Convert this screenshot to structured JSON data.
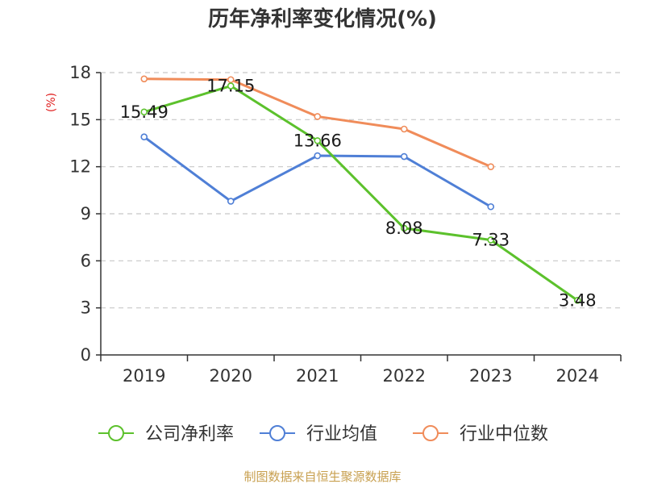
{
  "chart_data": {
    "type": "line",
    "title": "历年净利率变化情况(%)",
    "ylabel": "(%)",
    "categories": [
      "2019",
      "2020",
      "2021",
      "2022",
      "2023",
      "2024"
    ],
    "ylim": [
      0,
      18
    ],
    "yticks": [
      0,
      3,
      6,
      9,
      12,
      15,
      18
    ],
    "grid": true,
    "legend_position": "bottom",
    "series": [
      {
        "name": "公司净利率",
        "color": "#5cc12c",
        "values": [
          15.49,
          17.15,
          13.66,
          8.08,
          7.33,
          3.48
        ],
        "labels": [
          "15.49",
          "17.15",
          "13.66",
          "8.08",
          "7.33",
          "3.48"
        ]
      },
      {
        "name": "行业均值",
        "color": "#4f7fd6",
        "values": [
          13.9,
          9.8,
          12.7,
          12.65,
          9.45,
          null
        ]
      },
      {
        "name": "行业中位数",
        "color": "#f08c5a",
        "values": [
          17.6,
          17.55,
          15.2,
          14.4,
          12.0,
          null
        ]
      }
    ],
    "source": "制图数据来自恒生聚源数据库"
  }
}
